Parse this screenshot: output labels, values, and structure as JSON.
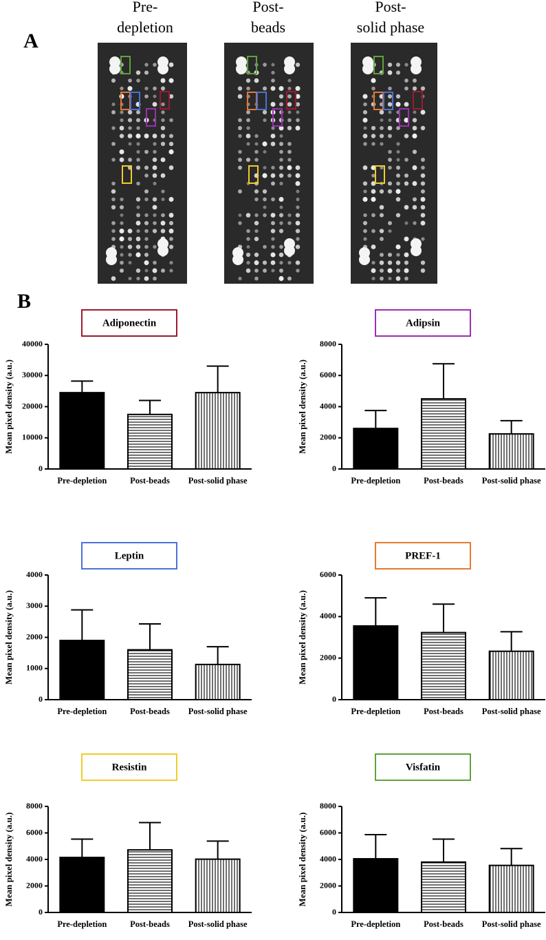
{
  "panel_a": {
    "label": "A",
    "columns": [
      [
        "Pre-",
        "depletion"
      ],
      [
        "Post-",
        "beads"
      ],
      [
        "Post-",
        "solid phase"
      ]
    ]
  },
  "panel_b": {
    "label": "B"
  },
  "chart_data": [
    {
      "type": "bar",
      "title": "Adiponectin",
      "title_color": "#9b1b30",
      "ylabel": "Mean pixel density (a.u.)",
      "categories": [
        "Pre-depletion",
        "Post-beads",
        "Post-solid phase"
      ],
      "values": [
        24500,
        17500,
        24500
      ],
      "errors": [
        3700,
        4500,
        8500
      ],
      "patterns": [
        "solid",
        "horizontal",
        "vertical"
      ],
      "ylim": [
        0,
        40000
      ],
      "yticks": [
        0,
        10000,
        20000,
        30000,
        40000
      ]
    },
    {
      "type": "bar",
      "title": "Adipsin",
      "title_color": "#9b2fb0",
      "ylabel": "Mean pixel density (a.u.)",
      "categories": [
        "Pre-depletion",
        "Post-beads",
        "Post-solid phase"
      ],
      "values": [
        2600,
        4500,
        2250
      ],
      "errors": [
        1150,
        2250,
        850
      ],
      "patterns": [
        "solid",
        "horizontal",
        "vertical"
      ],
      "ylim": [
        0,
        8000
      ],
      "yticks": [
        0,
        2000,
        4000,
        6000,
        8000
      ]
    },
    {
      "type": "bar",
      "title": "Leptin",
      "title_color": "#4a72d6",
      "ylabel": "Mean pixel density (a.u.)",
      "categories": [
        "Pre-depletion",
        "Post-beads",
        "Post-solid phase"
      ],
      "values": [
        1900,
        1600,
        1130
      ],
      "errors": [
        980,
        830,
        570
      ],
      "patterns": [
        "solid",
        "horizontal",
        "vertical"
      ],
      "ylim": [
        0,
        4000
      ],
      "yticks": [
        0,
        1000,
        2000,
        3000,
        4000
      ]
    },
    {
      "type": "bar",
      "title": "PREF-1",
      "title_color": "#e8782e",
      "ylabel": "Mean pixel density (a.u.)",
      "categories": [
        "Pre-depletion",
        "Post-beads",
        "Post-solid phase"
      ],
      "values": [
        3550,
        3230,
        2330
      ],
      "errors": [
        1350,
        1370,
        940
      ],
      "patterns": [
        "solid",
        "horizontal",
        "vertical"
      ],
      "ylim": [
        0,
        6000
      ],
      "yticks": [
        0,
        2000,
        4000,
        6000
      ]
    },
    {
      "type": "bar",
      "title": "Resistin",
      "title_color": "#f2cc2a",
      "ylabel": "Mean pixel density (a.u.)",
      "categories": [
        "Pre-depletion",
        "Post-beads",
        "Post-solid phase"
      ],
      "values": [
        4150,
        4720,
        4020
      ],
      "errors": [
        1380,
        2060,
        1360
      ],
      "patterns": [
        "solid",
        "horizontal",
        "vertical"
      ],
      "ylim": [
        0,
        8000
      ],
      "yticks": [
        0,
        2000,
        4000,
        6000,
        8000
      ]
    },
    {
      "type": "bar",
      "title": "Visfatin",
      "title_color": "#5fa33a",
      "ylabel": "Mean pixel density (a.u.)",
      "categories": [
        "Pre-depletion",
        "Post-beads",
        "Post-solid phase"
      ],
      "values": [
        4050,
        3800,
        3550
      ],
      "errors": [
        1820,
        1730,
        1270
      ],
      "patterns": [
        "solid",
        "horizontal",
        "vertical"
      ],
      "ylim": [
        0,
        8000
      ],
      "yticks": [
        0,
        2000,
        4000,
        6000,
        8000
      ]
    }
  ]
}
